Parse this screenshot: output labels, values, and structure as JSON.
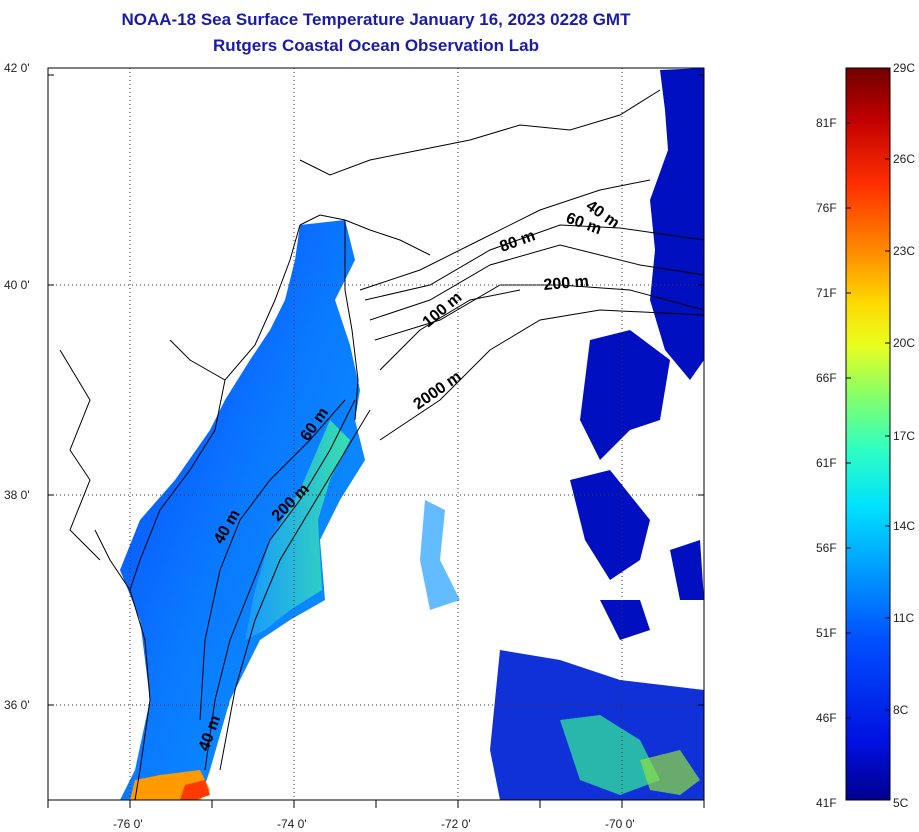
{
  "title_line1": "NOAA-18 Sea Surface Temperature January 16, 2023 0228 GMT",
  "title_line2": "Rutgers Coastal Ocean Observation Lab",
  "lat_labels": [
    "42 0'",
    "40 0'",
    "38 0'",
    "36 0'"
  ],
  "lon_labels": [
    "-76 0'",
    "-74 0'",
    "-72 0'",
    "-70 0'"
  ],
  "contour_labels": [
    "40 m",
    "60 m",
    "80 m",
    "200 m",
    "100 m",
    "2000 m",
    "60 m",
    "200 m",
    "40 m",
    "40 m"
  ],
  "colorbar": {
    "fahrenheit": [
      "81F",
      "76F",
      "71F",
      "66F",
      "61F",
      "56F",
      "51F",
      "46F",
      "41F"
    ],
    "celsius": [
      "29C",
      "26C",
      "23C",
      "20C",
      "17C",
      "14C",
      "11C",
      "8C",
      "5C"
    ],
    "colors": [
      "#700000",
      "#c00000",
      "#ff3000",
      "#ff8a00",
      "#ffd800",
      "#e8ff20",
      "#90ff60",
      "#30ffc0",
      "#00e0ff",
      "#00a0ff",
      "#0050ff",
      "#0010e0",
      "#00008f"
    ]
  },
  "colors": {
    "title": "#1b1baa",
    "ocean_warm": "#30e0a0",
    "ocean_mid": "#0a7aff",
    "ocean_cold": "#0010c0",
    "land": "#ffffff"
  }
}
